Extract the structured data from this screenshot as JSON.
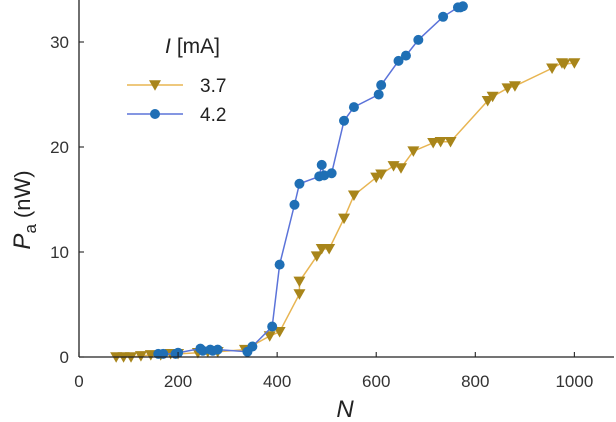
{
  "chart_data": {
    "type": "line",
    "title": "",
    "xlabel": "N",
    "ylabel": {
      "symbol": "P",
      "subscript": "a",
      "unit": "(nW)"
    },
    "xlim": [
      0,
      1080
    ],
    "ylim": [
      0,
      34
    ],
    "x_ticks": [
      0,
      200,
      400,
      600,
      800,
      1000
    ],
    "y_ticks": [
      0,
      10,
      20,
      30
    ],
    "grid": false,
    "legend": {
      "placement": "top-left",
      "title_var": "I",
      "title_unit": "[mA]"
    },
    "series": [
      {
        "name": "3.7",
        "color": "#a8851a",
        "line_color": "#e8b552",
        "marker": "triangle-down",
        "x": [
          75,
          90,
          105,
          125,
          145,
          165,
          185,
          200,
          240,
          260,
          280,
          335,
          385,
          405,
          445,
          445,
          480,
          490,
          505,
          535,
          555,
          600,
          610,
          635,
          650,
          675,
          715,
          730,
          750,
          825,
          835,
          865,
          880,
          955,
          975,
          980,
          1000
        ],
        "y": [
          0.0,
          0.0,
          0.0,
          0.1,
          0.2,
          0.2,
          0.3,
          0.3,
          0.4,
          0.5,
          0.5,
          0.7,
          2.0,
          2.4,
          6.0,
          7.2,
          9.6,
          10.3,
          10.3,
          13.2,
          15.4,
          17.1,
          17.4,
          18.2,
          18.0,
          19.6,
          20.4,
          20.5,
          20.5,
          24.4,
          24.8,
          25.6,
          25.8,
          27.5,
          28.0,
          27.9,
          28.0
        ]
      },
      {
        "name": "4.2",
        "color": "#1f6fb5",
        "line_color": "#5b73d9",
        "marker": "circle",
        "x": [
          160,
          170,
          195,
          200,
          245,
          250,
          265,
          270,
          280,
          340,
          350,
          390,
          405,
          435,
          445,
          485,
          490,
          495,
          510,
          535,
          555,
          605,
          610,
          645,
          660,
          685,
          735,
          765,
          770,
          775
        ],
        "y": [
          0.3,
          0.3,
          0.3,
          0.4,
          0.8,
          0.6,
          0.7,
          0.6,
          0.7,
          0.5,
          1.0,
          2.9,
          8.8,
          14.5,
          16.5,
          17.2,
          18.3,
          17.3,
          17.5,
          22.5,
          23.8,
          25.0,
          25.9,
          28.2,
          28.7,
          30.2,
          32.4,
          33.3,
          33.3,
          33.4
        ]
      }
    ]
  }
}
